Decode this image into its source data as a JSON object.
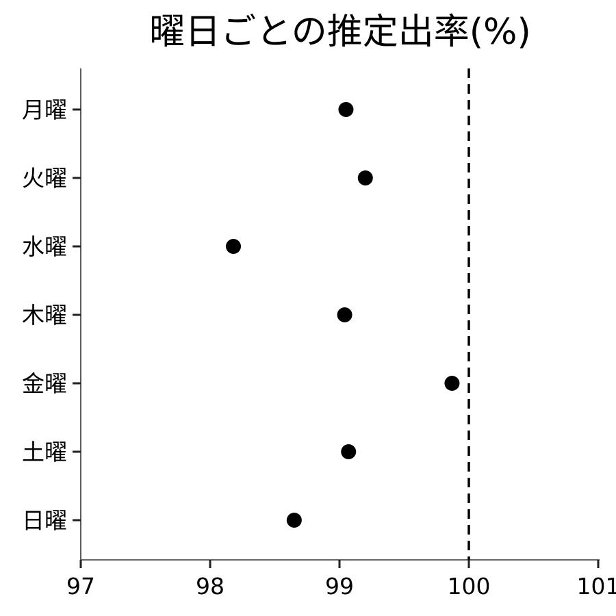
{
  "chart_data": {
    "type": "scatter",
    "title": "曜日ごとの推定出率(%)",
    "xlabel": "",
    "ylabel": "",
    "categories": [
      "月曜",
      "火曜",
      "水曜",
      "木曜",
      "金曜",
      "土曜",
      "日曜"
    ],
    "values": [
      99.05,
      99.2,
      98.18,
      99.04,
      99.87,
      99.07,
      98.65
    ],
    "xlim": [
      97,
      101
    ],
    "x_ticks": [
      "97",
      "98",
      "99",
      "100",
      "101"
    ],
    "reference_line": {
      "x": 100,
      "style": "dashed",
      "color": "#000000"
    },
    "marker_color": "#000000",
    "grid": false,
    "legend": "none"
  }
}
